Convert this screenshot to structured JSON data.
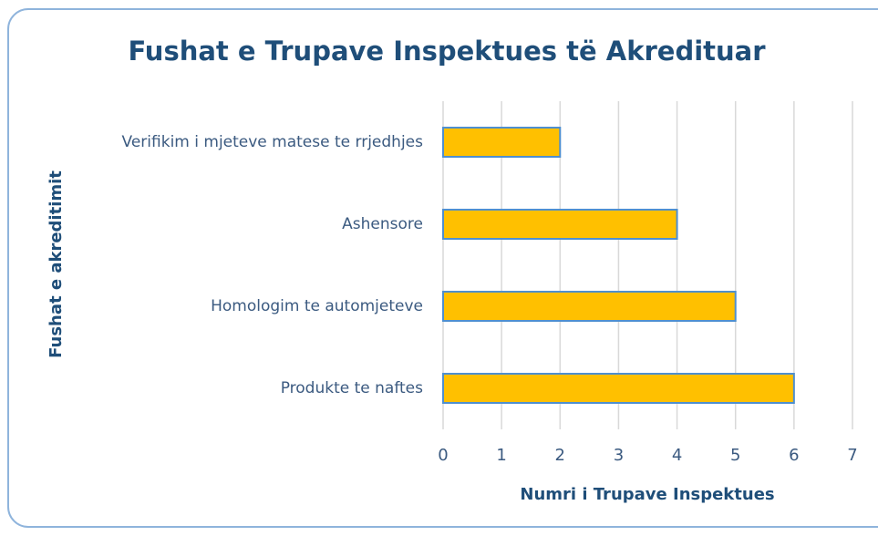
{
  "chart_data": {
    "type": "bar",
    "orientation": "horizontal",
    "title": "Fushat e Trupave Inspektues të Akredituar",
    "x_label": "Numri i Trupave Inspektues",
    "y_label": "Fushat e akreditimit",
    "categories": [
      "Verifikim i mjeteve matese te rrjedhjes",
      "Ashensore",
      "Homologim te automjeteve",
      "Produkte te naftes"
    ],
    "values": [
      2,
      4,
      5,
      6
    ],
    "color": "#ffc000",
    "edge_color": "#4f8fcf",
    "xlim": [
      0,
      7
    ],
    "xticks": [
      0,
      1,
      2,
      3,
      4,
      5,
      6,
      7
    ],
    "grid": true
  }
}
